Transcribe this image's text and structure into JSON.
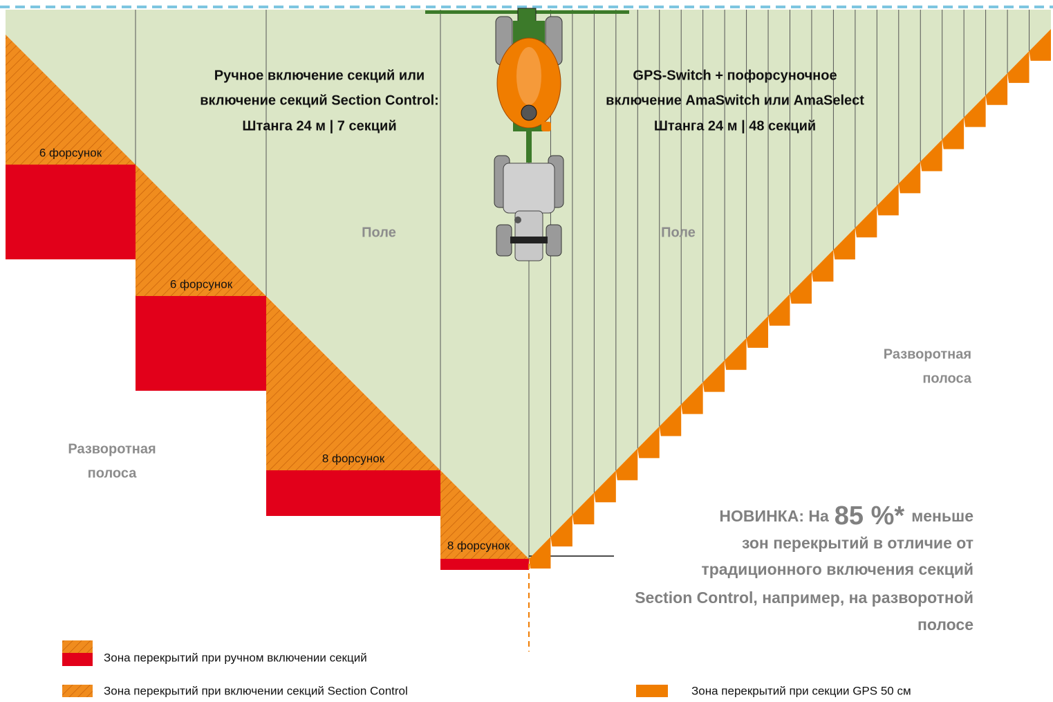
{
  "titles": {
    "left": [
      "Ручное включение секций или",
      "включение секций Section Control:",
      "Штанга 24 м | 7 секций"
    ],
    "right": [
      "GPS-Switch + пофорсуночное",
      "включение AmaSwitch или AmaSelect",
      "Штанга 24 м | 48 секций"
    ]
  },
  "field_labels": [
    "Поле",
    "Поле"
  ],
  "nozzle_labels": [
    "6 форсунок",
    "6 форсунок",
    "8 форсунок",
    "8 форсунок"
  ],
  "headland_labels": {
    "left": [
      "Разворотная",
      "полоса"
    ],
    "right": [
      "Разворотная",
      "полоса"
    ]
  },
  "highlight": {
    "prefix": "НОВИНКА: На",
    "value": "85 %*",
    "suffix": "меньше",
    "lines": [
      "зон перекрытий в отличие от",
      "традиционного включения секций",
      "Section Control, например, на разворотной",
      "полосе"
    ]
  },
  "legend": [
    "Зона перекрытий при ручном включении секций",
    "Зона перекрытий при включении секций Section Control",
    "Зона перекрытий при секции GPS 50 см"
  ]
}
